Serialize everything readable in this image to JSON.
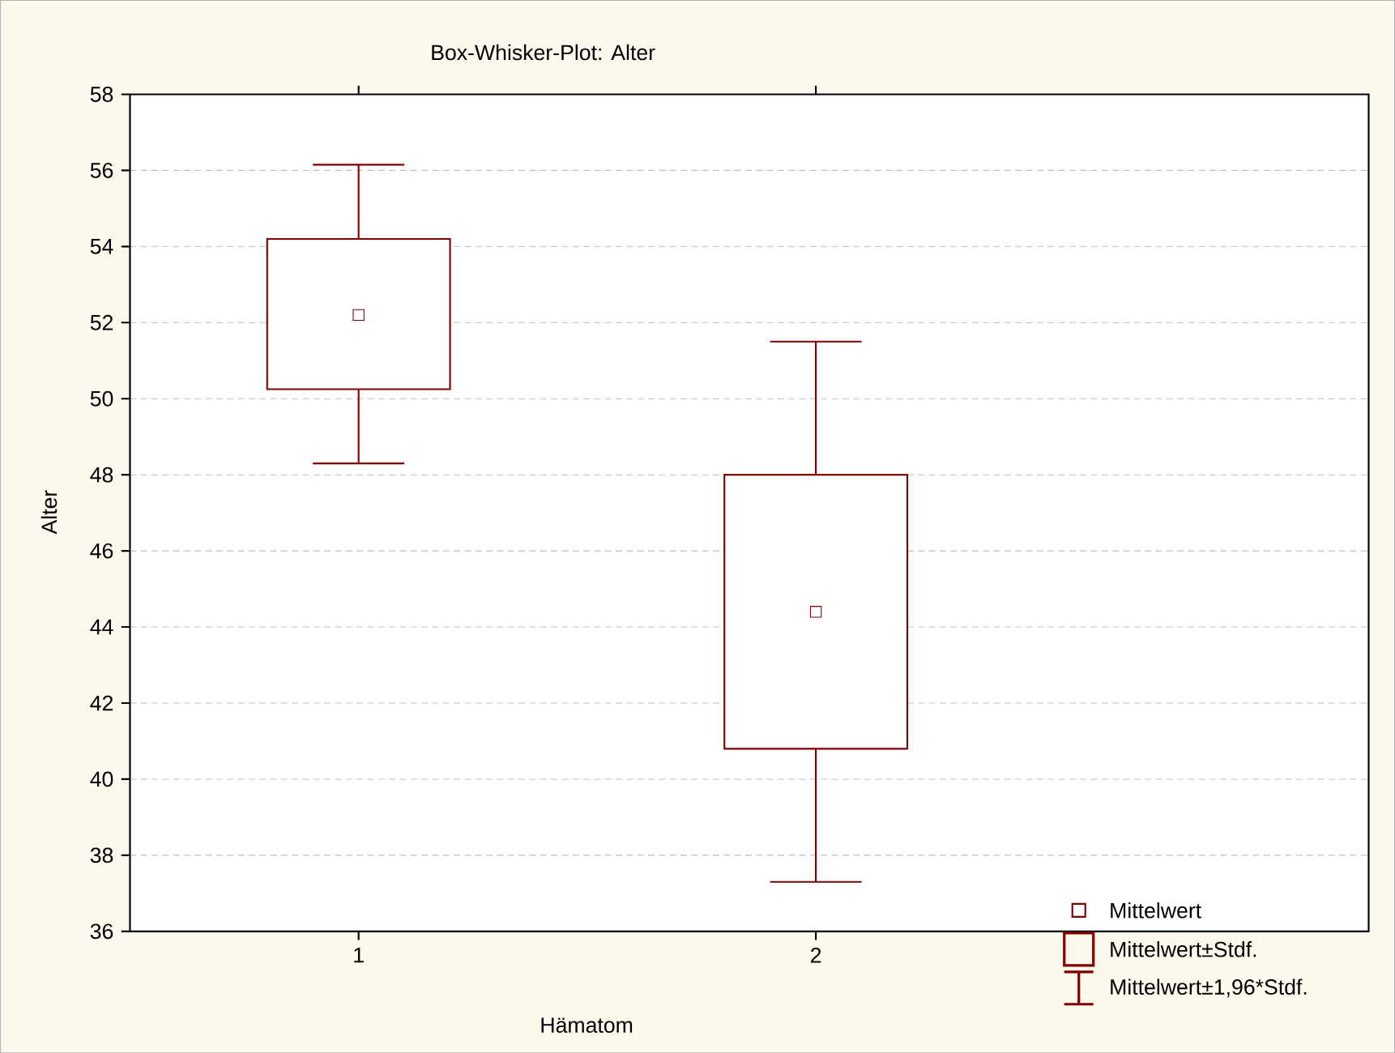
{
  "chart_data": {
    "type": "box",
    "title": "Box-Whisker-Plot: Alter",
    "xlabel": "Hämatom",
    "ylabel": "Alter",
    "categories": [
      "1",
      "2"
    ],
    "boxes": [
      {
        "low": 48.3,
        "q1": 50.25,
        "q3": 54.2,
        "high": 56.15,
        "mean": 52.2
      },
      {
        "low": 37.3,
        "q1": 40.8,
        "q3": 48.0,
        "high": 51.5,
        "mean": 44.4
      }
    ],
    "color": "#800000",
    "marker": "square",
    "ylim": [
      36,
      58
    ],
    "yticks": [
      36,
      38,
      40,
      42,
      44,
      46,
      48,
      50,
      52,
      54,
      56,
      58
    ],
    "grid": "y",
    "annotations": [
      "Mittelwert",
      "Mittelwert±Stdf.",
      "Mittelwert±1,96*Stdf."
    ]
  }
}
